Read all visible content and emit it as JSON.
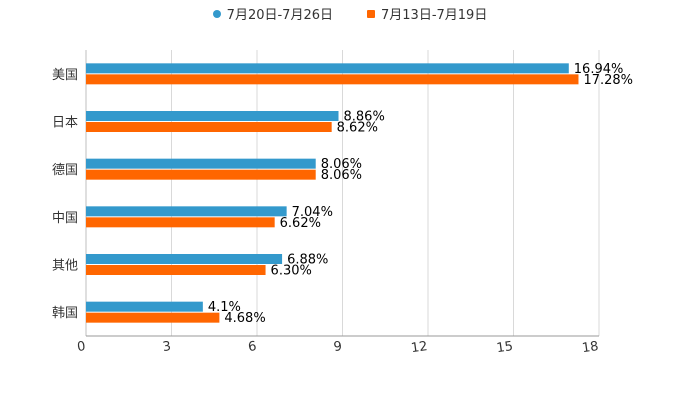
{
  "chart_data": {
    "type": "bar",
    "orientation": "horizontal",
    "categories": [
      "美国",
      "日本",
      "德国",
      "中国",
      "其他",
      "韩国"
    ],
    "series": [
      {
        "name": "7月20日-7月26日",
        "color": "#3399CC",
        "values": [
          16.94,
          8.86,
          8.06,
          7.04,
          6.88,
          4.1
        ],
        "labels": [
          "16.94%",
          "8.86%",
          "8.06%",
          "7.04%",
          "6.88%",
          "4.1%"
        ]
      },
      {
        "name": "7月13日-7月19日",
        "color": "#FF6600",
        "values": [
          17.28,
          8.62,
          8.06,
          6.62,
          6.3,
          4.68
        ],
        "labels": [
          "17.28%",
          "8.62%",
          "8.06%",
          "6.62%",
          "6.30%",
          "4.68%"
        ]
      }
    ],
    "xlim": [
      0,
      18
    ],
    "xticks": [
      0,
      3,
      6,
      9,
      12,
      15,
      18
    ],
    "xtick_labels": [
      "0",
      "3",
      "6",
      "9",
      "12",
      "15",
      "18"
    ],
    "grid": true,
    "legend_position": "top-center",
    "title": "",
    "xlabel": "",
    "ylabel": ""
  }
}
